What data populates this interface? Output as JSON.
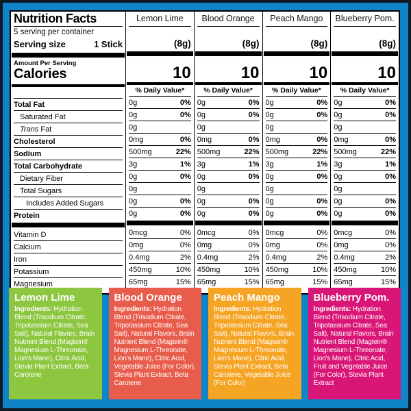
{
  "frame": {
    "outer_color": "#101a26",
    "background_color": "#0f85c8"
  },
  "label_panel": {
    "title": "Nutrition Facts",
    "servings_per_container": "5 serving per container",
    "serving_size_label": "Serving size",
    "serving_size_value": "1 Stick",
    "amount_per_serving": "Amount Per Serving",
    "calories_label": "Calories",
    "daily_value_header": "% Daily Value*"
  },
  "flavors": [
    {
      "name": "Lemon Lime",
      "serving_weight": "(8g)",
      "calories": "10"
    },
    {
      "name": "Blood Orange",
      "serving_weight": "(8g)",
      "calories": "10"
    },
    {
      "name": "Peach Mango",
      "serving_weight": "(8g)",
      "calories": "10"
    },
    {
      "name": "Blueberry Pom.",
      "serving_weight": "(8g)",
      "calories": "10"
    }
  ],
  "nutrient_rows": [
    {
      "label": "Total Fat",
      "bold": true,
      "indent": 0,
      "amount": "0g",
      "dv": "0%",
      "dv_bold": true
    },
    {
      "label": "Saturated Fat",
      "bold": false,
      "indent": 1,
      "amount": "0g",
      "dv": "0%",
      "dv_bold": true
    },
    {
      "label": "Fat",
      "italic_prefix": "Trans",
      "bold": false,
      "indent": 1,
      "amount": "0g",
      "dv": "",
      "dv_bold": false
    },
    {
      "label": "Cholesterol",
      "bold": true,
      "indent": 0,
      "amount": "0mg",
      "dv": "0%",
      "dv_bold": true
    },
    {
      "label": "Sodium",
      "bold": true,
      "indent": 0,
      "amount": "500mg",
      "dv": "22%",
      "dv_bold": true
    },
    {
      "label": "Total Carbohydrate",
      "bold": true,
      "indent": 0,
      "amount": "3g",
      "dv": "1%",
      "dv_bold": true
    },
    {
      "label": "Dietary Fiber",
      "bold": false,
      "indent": 1,
      "amount": "0g",
      "dv": "0%",
      "dv_bold": true
    },
    {
      "label": "Total Sugars",
      "bold": false,
      "indent": 1,
      "amount": "0g",
      "dv": "",
      "dv_bold": false
    },
    {
      "label": "Includes Added Sugars",
      "bold": false,
      "indent": 2,
      "amount": "0g",
      "dv": "0%",
      "dv_bold": true
    },
    {
      "label": "Protein",
      "bold": true,
      "indent": 0,
      "amount": "0g",
      "dv": "0%",
      "dv_bold": true,
      "last": true
    }
  ],
  "micronutrient_rows": [
    {
      "label": "Vitamin D",
      "amount": "0mcg",
      "dv": "0%"
    },
    {
      "label": "Calcium",
      "amount": "0mg",
      "dv": "0%"
    },
    {
      "label": "Iron",
      "amount": "0.4mg",
      "dv": "2%"
    },
    {
      "label": "Potassium",
      "amount": "450mg",
      "dv": "10%"
    },
    {
      "label": "Magnesium",
      "amount": "65mg",
      "dv": "15%"
    }
  ],
  "ingredient_panels": [
    {
      "title": "Lemon Lime",
      "color": "#8dc63f",
      "ingredients_label": "Ingredients:",
      "ingredients": "Hydration Blend (Trisodium Citrate, Tripotassium Citrate, Sea Salt), Natural Flavors, Brain Nutrient Blend (Magtein® Magnesium L-Threonate, Lion's Mane), Citric Acid, Stevia Plant Extract, Beta Carotene"
    },
    {
      "title": "Blood Orange",
      "color": "#e85c4b",
      "ingredients_label": "Ingredients:",
      "ingredients": "Hydration Blend (Trisodium Citrate, Tripotassium Citrate, Sea Salt), Natural Flavors, Brain Nutrient Blend (Magtein® Magnesium L-Threonate, Lion's Mane), Citric Acid, Vegetable Juice (For Color), Stevia Plant Extract, Beta Carotene"
    },
    {
      "title": "Peach Mango",
      "color": "#f5a423",
      "ingredients_label": "Ingredients:",
      "ingredients": "Hydration Blend (Trisodium Citrate, Tripotassium Citrate, Sea Salt), Natural Flavors, Brain Nutrient Blend (Magtein® Magnesium L-Threonate, Lion's Mane), Citric Acid, Stevia Plant Extract, Beta Carotene, Vegetable Juice (For Color)"
    },
    {
      "title": "Blueberry Pom.",
      "color": "#d91677",
      "ingredients_label": "Ingredients:",
      "ingredients": "Hydration Blend (Trisodium Citrate, Tripotassium Citrate, Sea Salt), Natural Flavors, Brain Nutrient Blend (Magtein® Magnesium L-Threonate, Lion's Mane), Citric Acid, Fruit and Vegetable Juice (For Color), Stevia Plant Extract"
    }
  ]
}
